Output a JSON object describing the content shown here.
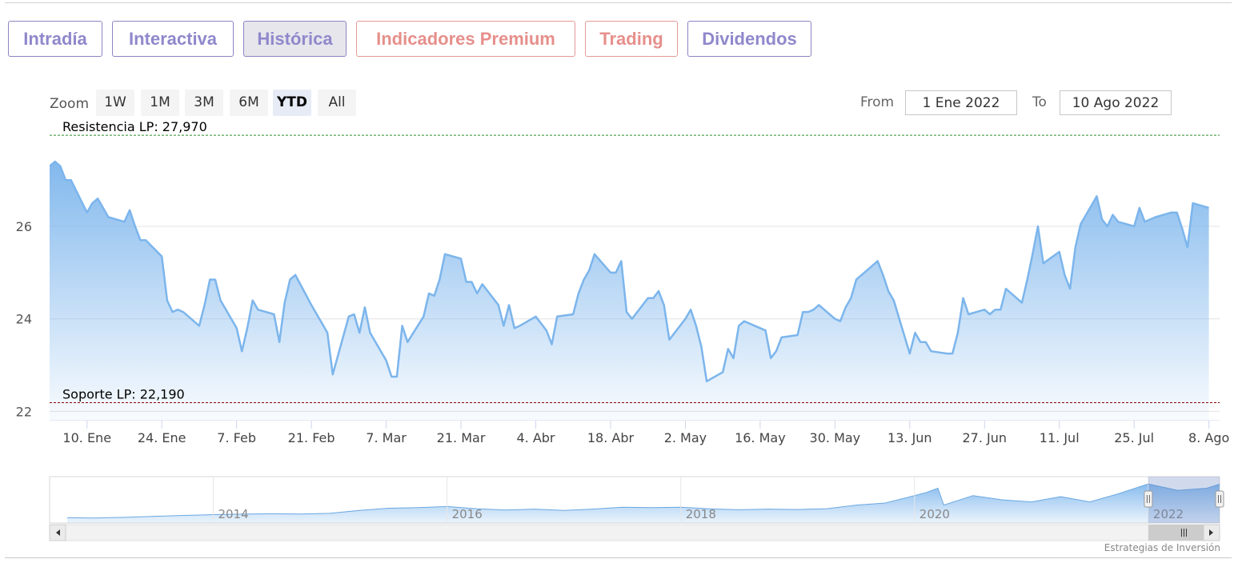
{
  "tabs": [
    {
      "label": "Intradía",
      "style": "normal"
    },
    {
      "label": "Interactiva",
      "style": "normal"
    },
    {
      "label": "Histórica",
      "style": "active"
    },
    {
      "label": "Indicadores Premium",
      "style": "premium"
    },
    {
      "label": "Trading",
      "style": "premium"
    },
    {
      "label": "Dividendos",
      "style": "normal"
    }
  ],
  "zoom": {
    "label": "Zoom",
    "buttons": [
      "1W",
      "1M",
      "3M",
      "6M",
      "YTD",
      "All"
    ],
    "selected": "YTD"
  },
  "range": {
    "from_label": "From",
    "from_value": "1 Ene 2022",
    "to_label": "To",
    "to_value": "10 Ago 2022"
  },
  "credits": "Estrategias de Inversión",
  "colors": {
    "series": "#7cb5ec",
    "resistance": "#2f8a2f",
    "support": "#8b0000",
    "tab_text": "#8f88cc",
    "tab_premium": "#e68f8b"
  },
  "navigator_icon": "scrollbar-grip-icon",
  "chart_data": {
    "type": "area",
    "title": "",
    "xlabel": "",
    "ylabel": "",
    "ylim": [
      21.8,
      28.3
    ],
    "yticks": [
      22,
      24,
      26
    ],
    "x_dates": [
      "2022-01-10",
      "2022-01-24",
      "2022-02-07",
      "2022-02-21",
      "2022-03-07",
      "2022-03-21",
      "2022-04-04",
      "2022-04-18",
      "2022-05-02",
      "2022-05-16",
      "2022-05-30",
      "2022-06-13",
      "2022-06-27",
      "2022-07-11",
      "2022-07-25",
      "2022-08-08"
    ],
    "x_tick_labels": [
      "10. Ene",
      "24. Ene",
      "7. Feb",
      "21. Feb",
      "7. Mar",
      "21. Mar",
      "4. Abr",
      "18. Abr",
      "2. May",
      "16. May",
      "30. May",
      "13. Jun",
      "27. Jun",
      "11. Jul",
      "25. Jul",
      "8. Ago"
    ],
    "xlim": [
      "2022-01-03",
      "2022-08-10"
    ],
    "annotations": [
      {
        "label": "Resistencia LP: 27,970",
        "value": 27.97,
        "color": "#2f8a2f"
      },
      {
        "label": "Soporte LP: 22,190",
        "value": 22.19,
        "color": "#8b0000"
      }
    ],
    "series": [
      {
        "values": [
          [
            "2022-01-03",
            27.3
          ],
          [
            "2022-01-04",
            27.4
          ],
          [
            "2022-01-05",
            27.3
          ],
          [
            "2022-01-06",
            27.0
          ],
          [
            "2022-01-07",
            27.0
          ],
          [
            "2022-01-10",
            26.3
          ],
          [
            "2022-01-11",
            26.5
          ],
          [
            "2022-01-12",
            26.6
          ],
          [
            "2022-01-13",
            26.4
          ],
          [
            "2022-01-14",
            26.2
          ],
          [
            "2022-01-17",
            26.1
          ],
          [
            "2022-01-18",
            26.35
          ],
          [
            "2022-01-19",
            26.0
          ],
          [
            "2022-01-20",
            25.7
          ],
          [
            "2022-01-21",
            25.7
          ],
          [
            "2022-01-24",
            25.35
          ],
          [
            "2022-01-25",
            24.4
          ],
          [
            "2022-01-26",
            24.15
          ],
          [
            "2022-01-27",
            24.2
          ],
          [
            "2022-01-28",
            24.15
          ],
          [
            "2022-01-31",
            23.85
          ],
          [
            "2022-02-01",
            24.3
          ],
          [
            "2022-02-02",
            24.85
          ],
          [
            "2022-02-03",
            24.85
          ],
          [
            "2022-02-04",
            24.4
          ],
          [
            "2022-02-07",
            23.8
          ],
          [
            "2022-02-08",
            23.3
          ],
          [
            "2022-02-09",
            23.8
          ],
          [
            "2022-02-10",
            24.4
          ],
          [
            "2022-02-11",
            24.2
          ],
          [
            "2022-02-14",
            24.1
          ],
          [
            "2022-02-15",
            23.5
          ],
          [
            "2022-02-16",
            24.35
          ],
          [
            "2022-02-17",
            24.85
          ],
          [
            "2022-02-18",
            24.95
          ],
          [
            "2022-02-21",
            24.3
          ],
          [
            "2022-02-22",
            24.1
          ],
          [
            "2022-02-23",
            23.9
          ],
          [
            "2022-02-24",
            23.7
          ],
          [
            "2022-02-25",
            22.8
          ],
          [
            "2022-02-28",
            24.05
          ],
          [
            "2022-03-01",
            24.1
          ],
          [
            "2022-03-02",
            23.7
          ],
          [
            "2022-03-03",
            24.25
          ],
          [
            "2022-03-04",
            23.7
          ],
          [
            "2022-03-07",
            23.1
          ],
          [
            "2022-03-08",
            22.75
          ],
          [
            "2022-03-09",
            22.75
          ],
          [
            "2022-03-10",
            23.85
          ],
          [
            "2022-03-11",
            23.5
          ],
          [
            "2022-03-14",
            24.05
          ],
          [
            "2022-03-15",
            24.55
          ],
          [
            "2022-03-16",
            24.5
          ],
          [
            "2022-03-17",
            24.85
          ],
          [
            "2022-03-18",
            25.4
          ],
          [
            "2022-03-21",
            25.3
          ],
          [
            "2022-03-22",
            24.8
          ],
          [
            "2022-03-23",
            24.8
          ],
          [
            "2022-03-24",
            24.55
          ],
          [
            "2022-03-25",
            24.75
          ],
          [
            "2022-03-28",
            24.3
          ],
          [
            "2022-03-29",
            23.85
          ],
          [
            "2022-03-30",
            24.3
          ],
          [
            "2022-03-31",
            23.8
          ],
          [
            "2022-04-01",
            23.85
          ],
          [
            "2022-04-04",
            24.05
          ],
          [
            "2022-04-05",
            23.9
          ],
          [
            "2022-04-06",
            23.75
          ],
          [
            "2022-04-07",
            23.45
          ],
          [
            "2022-04-08",
            24.05
          ],
          [
            "2022-04-11",
            24.1
          ],
          [
            "2022-04-12",
            24.55
          ],
          [
            "2022-04-13",
            24.85
          ],
          [
            "2022-04-14",
            25.05
          ],
          [
            "2022-04-15",
            25.4
          ],
          [
            "2022-04-18",
            25.0
          ],
          [
            "2022-04-19",
            25.0
          ],
          [
            "2022-04-20",
            25.25
          ],
          [
            "2022-04-21",
            24.15
          ],
          [
            "2022-04-22",
            24.0
          ],
          [
            "2022-04-25",
            24.45
          ],
          [
            "2022-04-26",
            24.45
          ],
          [
            "2022-04-27",
            24.6
          ],
          [
            "2022-04-28",
            24.3
          ],
          [
            "2022-04-29",
            23.55
          ],
          [
            "2022-05-02",
            24.0
          ],
          [
            "2022-05-03",
            24.2
          ],
          [
            "2022-05-04",
            23.85
          ],
          [
            "2022-05-05",
            23.4
          ],
          [
            "2022-05-06",
            22.65
          ],
          [
            "2022-05-09",
            22.85
          ],
          [
            "2022-05-10",
            23.35
          ],
          [
            "2022-05-11",
            23.15
          ],
          [
            "2022-05-12",
            23.85
          ],
          [
            "2022-05-13",
            23.95
          ],
          [
            "2022-05-16",
            23.8
          ],
          [
            "2022-05-17",
            23.75
          ],
          [
            "2022-05-18",
            23.15
          ],
          [
            "2022-05-19",
            23.3
          ],
          [
            "2022-05-20",
            23.6
          ],
          [
            "2022-05-23",
            23.65
          ],
          [
            "2022-05-24",
            24.15
          ],
          [
            "2022-05-25",
            24.15
          ],
          [
            "2022-05-26",
            24.2
          ],
          [
            "2022-05-27",
            24.3
          ],
          [
            "2022-05-30",
            24.0
          ],
          [
            "2022-05-31",
            23.95
          ],
          [
            "2022-06-01",
            24.25
          ],
          [
            "2022-06-02",
            24.45
          ],
          [
            "2022-06-03",
            24.85
          ],
          [
            "2022-06-06",
            25.15
          ],
          [
            "2022-06-07",
            25.25
          ],
          [
            "2022-06-08",
            24.95
          ],
          [
            "2022-06-09",
            24.6
          ],
          [
            "2022-06-10",
            24.4
          ],
          [
            "2022-06-13",
            23.25
          ],
          [
            "2022-06-14",
            23.7
          ],
          [
            "2022-06-15",
            23.5
          ],
          [
            "2022-06-16",
            23.5
          ],
          [
            "2022-06-17",
            23.3
          ],
          [
            "2022-06-20",
            23.25
          ],
          [
            "2022-06-21",
            23.25
          ],
          [
            "2022-06-22",
            23.7
          ],
          [
            "2022-06-23",
            24.45
          ],
          [
            "2022-06-24",
            24.1
          ],
          [
            "2022-06-27",
            24.2
          ],
          [
            "2022-06-28",
            24.1
          ],
          [
            "2022-06-29",
            24.2
          ],
          [
            "2022-06-30",
            24.2
          ],
          [
            "2022-07-01",
            24.65
          ],
          [
            "2022-07-04",
            24.35
          ],
          [
            "2022-07-05",
            24.85
          ],
          [
            "2022-07-06",
            25.4
          ],
          [
            "2022-07-07",
            26.0
          ],
          [
            "2022-07-08",
            25.2
          ],
          [
            "2022-07-11",
            25.45
          ],
          [
            "2022-07-12",
            24.95
          ],
          [
            "2022-07-13",
            24.65
          ],
          [
            "2022-07-14",
            25.55
          ],
          [
            "2022-07-15",
            26.05
          ],
          [
            "2022-07-18",
            26.65
          ],
          [
            "2022-07-19",
            26.15
          ],
          [
            "2022-07-20",
            26.0
          ],
          [
            "2022-07-21",
            26.25
          ],
          [
            "2022-07-22",
            26.1
          ],
          [
            "2022-07-25",
            26.0
          ],
          [
            "2022-07-26",
            26.4
          ],
          [
            "2022-07-27",
            26.1
          ],
          [
            "2022-07-28",
            26.15
          ],
          [
            "2022-07-29",
            26.2
          ],
          [
            "2022-08-01",
            26.3
          ],
          [
            "2022-08-02",
            26.3
          ],
          [
            "2022-08-03",
            25.95
          ],
          [
            "2022-08-04",
            25.55
          ],
          [
            "2022-08-05",
            26.5
          ],
          [
            "2022-08-08",
            26.4
          ]
        ]
      }
    ],
    "navigator": {
      "x_tick_labels": [
        "2014",
        "2016",
        "2018",
        "2020",
        "2022"
      ],
      "xlim": [
        2012.6,
        2022.61
      ],
      "selection": [
        2022.0,
        2022.61
      ],
      "values": [
        [
          2012.75,
          10.5
        ],
        [
          2013.0,
          10.4
        ],
        [
          2013.25,
          10.7
        ],
        [
          2013.5,
          11.2
        ],
        [
          2013.75,
          11.6
        ],
        [
          2014.0,
          12.0
        ],
        [
          2014.25,
          12.2
        ],
        [
          2014.5,
          12.4
        ],
        [
          2014.75,
          12.3
        ],
        [
          2015.0,
          12.6
        ],
        [
          2015.25,
          14.0
        ],
        [
          2015.5,
          15.0
        ],
        [
          2015.75,
          15.3
        ],
        [
          2016.0,
          15.8
        ],
        [
          2016.25,
          14.8
        ],
        [
          2016.5,
          14.2
        ],
        [
          2016.75,
          14.6
        ],
        [
          2017.0,
          14.0
        ],
        [
          2017.25,
          14.6
        ],
        [
          2017.5,
          15.5
        ],
        [
          2017.75,
          15.3
        ],
        [
          2018.0,
          15.5
        ],
        [
          2018.25,
          14.7
        ],
        [
          2018.5,
          14.3
        ],
        [
          2018.75,
          14.6
        ],
        [
          2019.0,
          14.4
        ],
        [
          2019.25,
          14.8
        ],
        [
          2019.5,
          16.5
        ],
        [
          2019.75,
          17.5
        ],
        [
          2020.0,
          21.0
        ],
        [
          2020.1,
          22.5
        ],
        [
          2020.2,
          24.5
        ],
        [
          2020.25,
          16.5
        ],
        [
          2020.5,
          21.0
        ],
        [
          2020.75,
          19.0
        ],
        [
          2021.0,
          18.0
        ],
        [
          2021.25,
          20.5
        ],
        [
          2021.5,
          18.0
        ],
        [
          2021.75,
          22.0
        ],
        [
          2022.0,
          26.5
        ],
        [
          2022.25,
          23.5
        ],
        [
          2022.5,
          24.5
        ],
        [
          2022.61,
          26.4
        ]
      ]
    }
  }
}
